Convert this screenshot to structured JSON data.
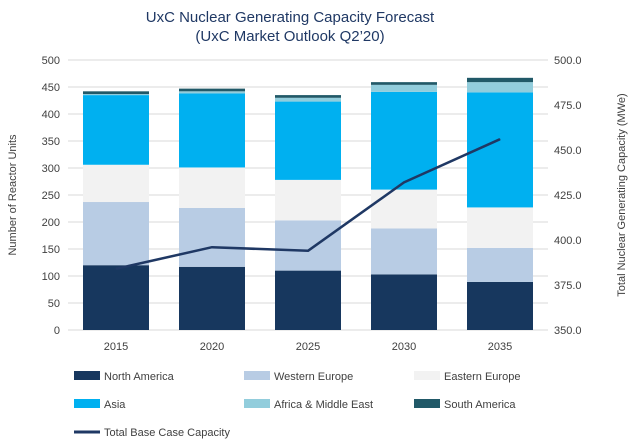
{
  "chart_data": {
    "type": "bar",
    "stacked": true,
    "title": "UxC Nuclear Generating Capacity Forecast",
    "subtitle": "(UxC Market Outlook Q2’20)",
    "ylabel": "Number of Reactor Units",
    "y2label": "Total Nuclear Generating Capacity (MWe)",
    "categories": [
      "2015",
      "2020",
      "2025",
      "2030",
      "2035"
    ],
    "ylim": [
      0,
      500
    ],
    "y2lim": [
      350.0,
      500.0
    ],
    "yticks": [
      "0",
      "50",
      "100",
      "150",
      "200",
      "250",
      "300",
      "350",
      "400",
      "450",
      "500"
    ],
    "y2ticks": [
      "350.0",
      "375.0",
      "400.0",
      "425.0",
      "450.0",
      "475.0",
      "500.0"
    ],
    "grid": true,
    "legend_position": "bottom",
    "series": [
      {
        "name": "North America",
        "color": "#17375e",
        "values": [
          120,
          117,
          110,
          103,
          89
        ]
      },
      {
        "name": "Western Europe",
        "color": "#b8cce4",
        "values": [
          117,
          109,
          93,
          85,
          63
        ]
      },
      {
        "name": "Eastern Europe",
        "color": "#f2f2f2",
        "values": [
          69,
          75,
          75,
          72,
          75
        ]
      },
      {
        "name": "Asia",
        "color": "#00b0f0",
        "values": [
          129,
          137,
          145,
          181,
          213
        ]
      },
      {
        "name": "Africa & Middle East",
        "color": "#92cddc",
        "values": [
          2,
          4,
          7,
          13,
          19
        ]
      },
      {
        "name": "South America",
        "color": "#215968",
        "values": [
          5,
          5,
          5,
          5,
          8
        ]
      }
    ],
    "line_series": {
      "name": "Total Base Case  Capacity",
      "color": "#1f3864",
      "axis": "secondary",
      "values": [
        384.0,
        396.0,
        394.0,
        432.0,
        456.0
      ]
    }
  }
}
